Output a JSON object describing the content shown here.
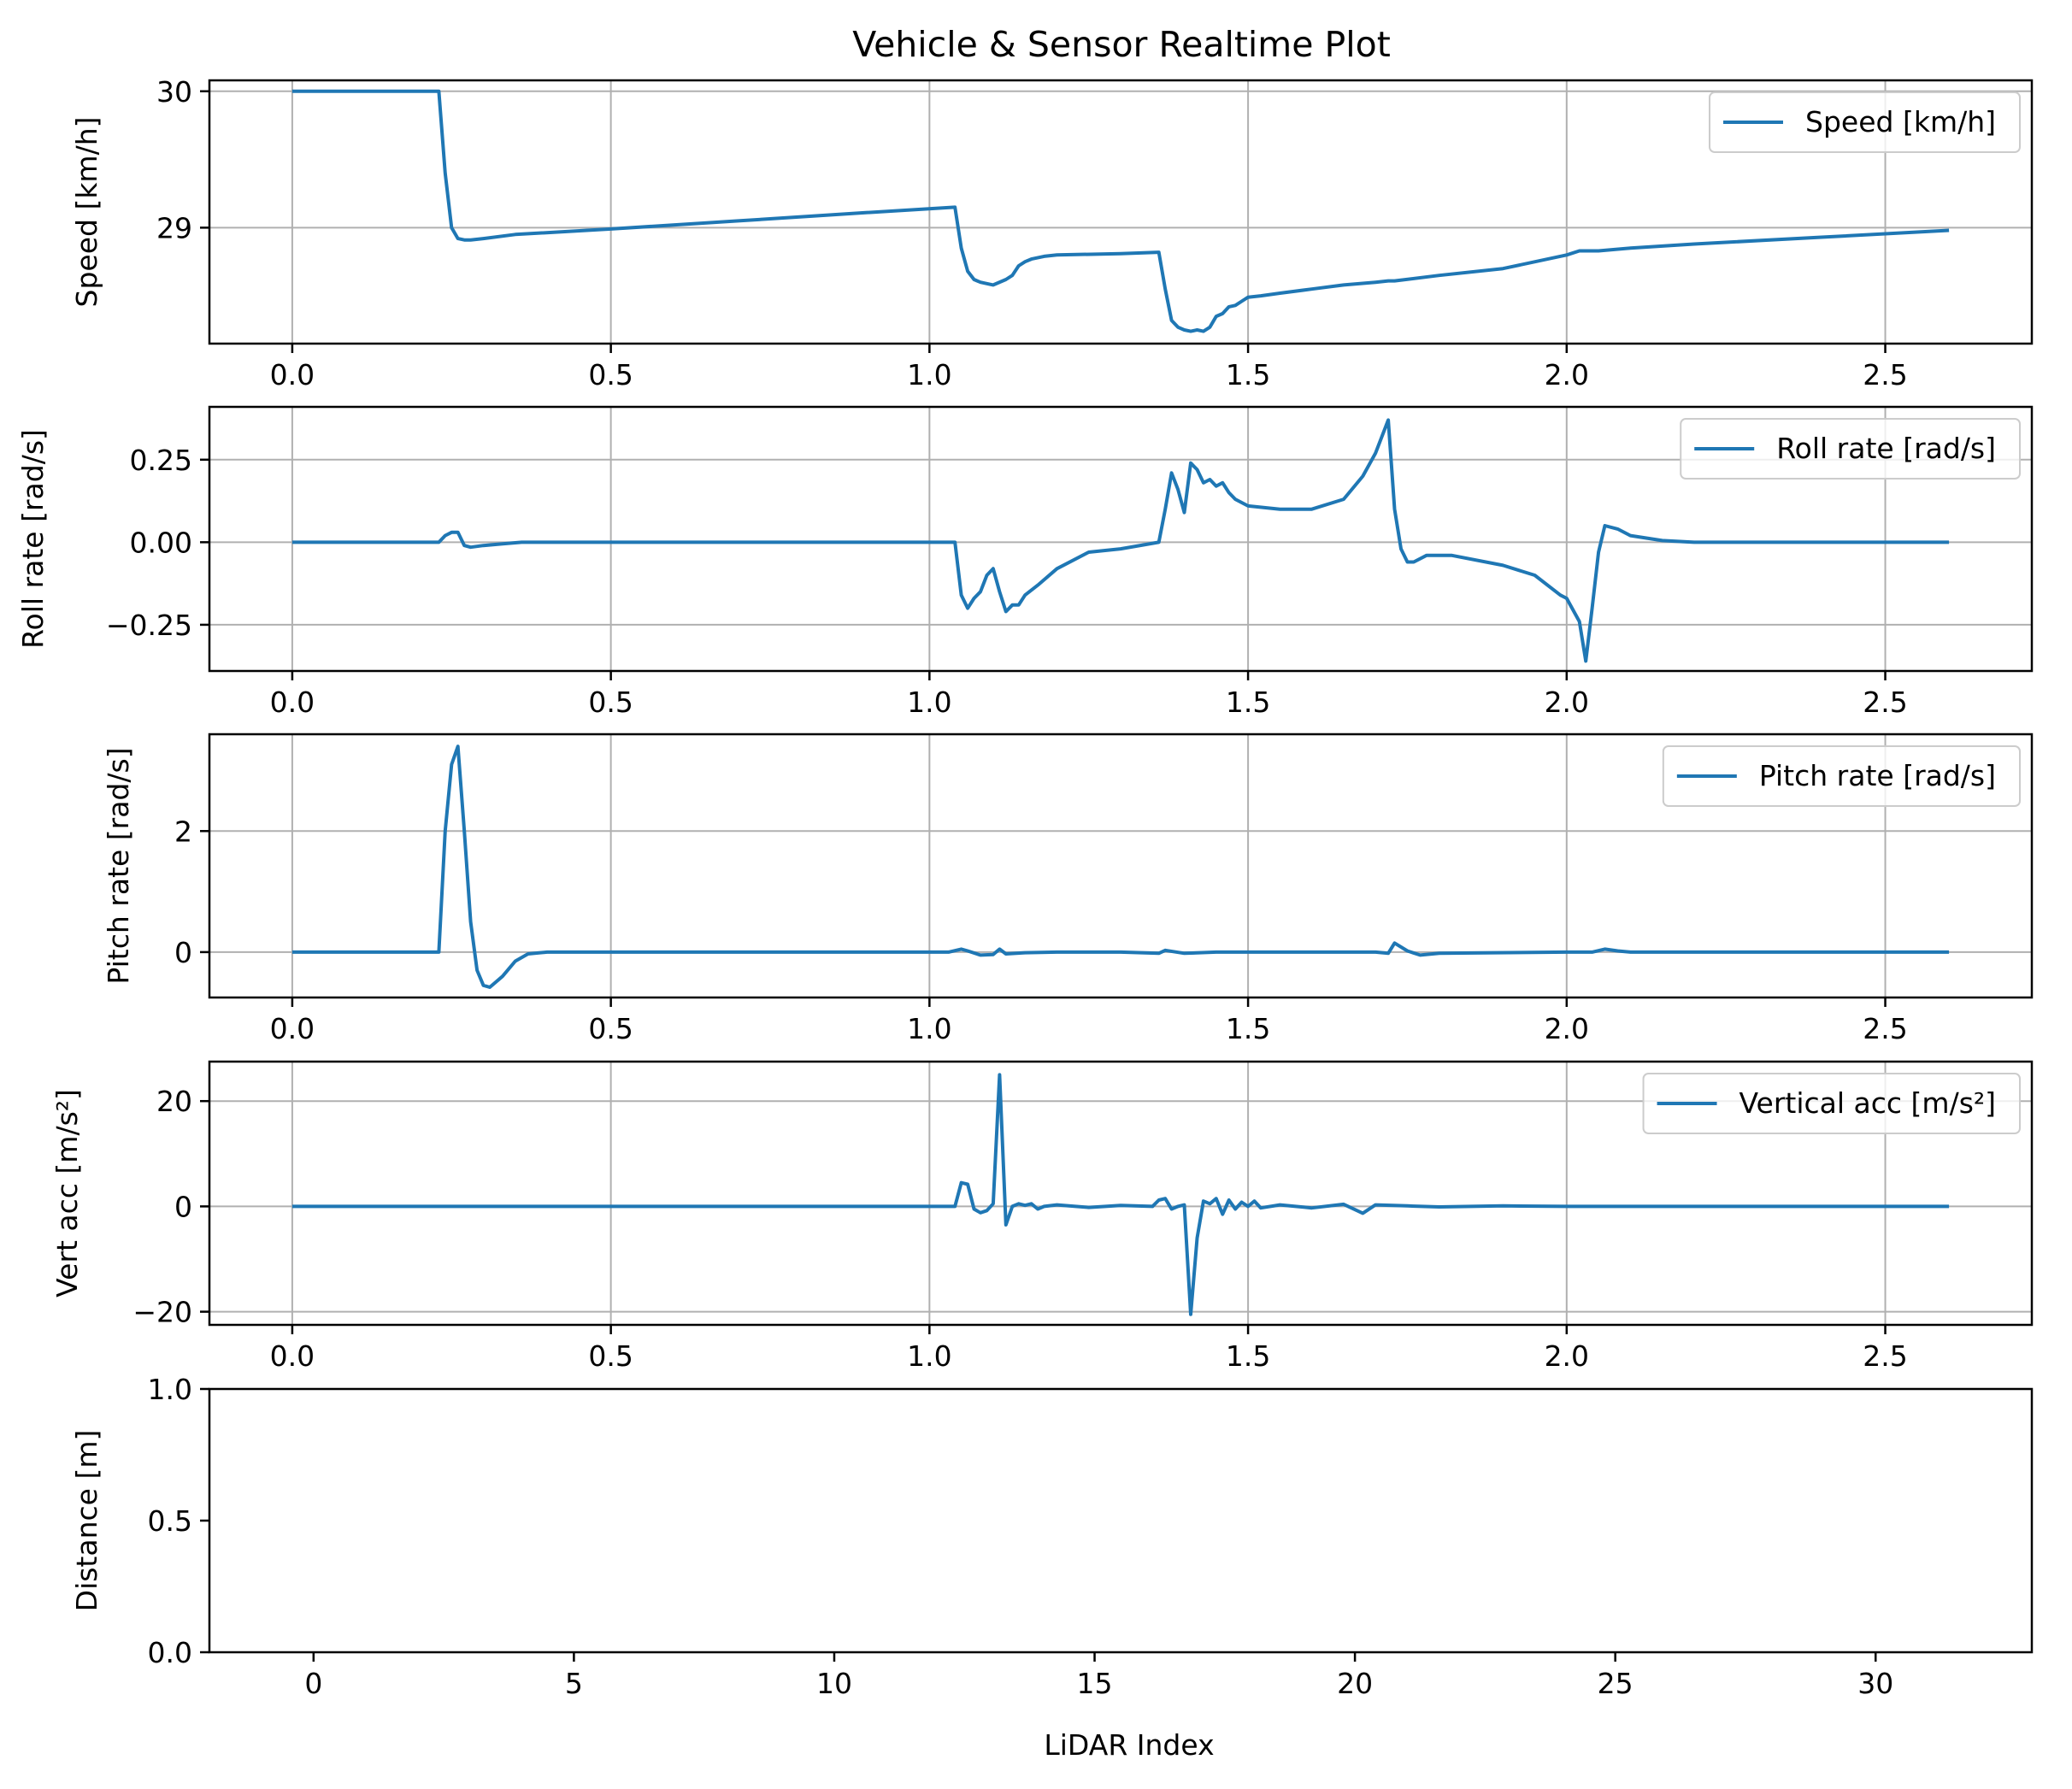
{
  "figure": {
    "title": "Vehicle & Sensor Realtime Plot",
    "line_color": "#1f77b4",
    "grid_color": "#b0b0b0"
  },
  "chart_data": [
    {
      "type": "line",
      "ylabel": "Speed [km/h]",
      "xlim": [
        -0.13,
        2.73
      ],
      "ylim": [
        28.15,
        30.08
      ],
      "xticks": [
        "0.0",
        "0.5",
        "1.0",
        "1.5",
        "2.0",
        "2.5"
      ],
      "yticks": [
        "29",
        "30"
      ],
      "grid": true,
      "legend": "top-right",
      "series": [
        {
          "name": "Speed [km/h]",
          "x": [
            0,
            0.23,
            0.24,
            0.25,
            0.26,
            0.27,
            0.28,
            0.3,
            0.35,
            0.5,
            0.7,
            0.9,
            1.04,
            1.05,
            1.06,
            1.07,
            1.08,
            1.1,
            1.12,
            1.13,
            1.14,
            1.15,
            1.16,
            1.18,
            1.2,
            1.3,
            1.36,
            1.37,
            1.38,
            1.39,
            1.4,
            1.41,
            1.42,
            1.43,
            1.44,
            1.45,
            1.46,
            1.47,
            1.48,
            1.49,
            1.5,
            1.52,
            1.55,
            1.6,
            1.65,
            1.7,
            1.72,
            1.73,
            1.8,
            1.9,
            2.0,
            2.02,
            2.05,
            2.1,
            2.2,
            2.4,
            2.6
          ],
          "values": [
            30.0,
            30.0,
            29.4,
            29.0,
            28.92,
            28.91,
            28.91,
            28.92,
            28.95,
            28.99,
            29.05,
            29.11,
            29.15,
            28.85,
            28.68,
            28.62,
            28.6,
            28.58,
            28.62,
            28.65,
            28.72,
            28.75,
            28.77,
            28.79,
            28.8,
            28.81,
            28.82,
            28.55,
            28.32,
            28.27,
            28.25,
            28.24,
            28.25,
            28.24,
            28.27,
            28.35,
            28.37,
            28.42,
            28.43,
            28.46,
            28.49,
            28.5,
            28.52,
            28.55,
            28.58,
            28.6,
            28.61,
            28.61,
            28.65,
            28.7,
            28.8,
            28.83,
            28.83,
            28.85,
            28.88,
            28.93,
            28.98
          ]
        }
      ]
    },
    {
      "type": "line",
      "ylabel": "Roll rate [rad/s]",
      "xlim": [
        -0.13,
        2.73
      ],
      "ylim": [
        -0.39,
        0.41
      ],
      "xticks": [
        "0.0",
        "0.5",
        "1.0",
        "1.5",
        "2.0",
        "2.5"
      ],
      "yticks": [
        "−0.25",
        "0.00",
        "0.25"
      ],
      "grid": true,
      "legend": "top-right",
      "series": [
        {
          "name": "Roll rate [rad/s]",
          "x": [
            0,
            0.23,
            0.24,
            0.25,
            0.26,
            0.27,
            0.28,
            0.3,
            0.33,
            0.36,
            0.5,
            1.04,
            1.05,
            1.06,
            1.07,
            1.08,
            1.09,
            1.1,
            1.11,
            1.12,
            1.13,
            1.14,
            1.15,
            1.17,
            1.2,
            1.25,
            1.3,
            1.36,
            1.37,
            1.38,
            1.39,
            1.4,
            1.41,
            1.42,
            1.43,
            1.44,
            1.45,
            1.46,
            1.47,
            1.48,
            1.5,
            1.55,
            1.6,
            1.65,
            1.68,
            1.7,
            1.72,
            1.73,
            1.74,
            1.75,
            1.76,
            1.78,
            1.82,
            1.9,
            1.95,
            1.99,
            2.0,
            2.02,
            2.03,
            2.04,
            2.05,
            2.06,
            2.08,
            2.1,
            2.15,
            2.2,
            2.6
          ],
          "values": [
            0,
            0,
            0.02,
            0.03,
            0.03,
            -0.01,
            -0.015,
            -0.01,
            -0.005,
            0,
            0,
            0,
            -0.16,
            -0.2,
            -0.17,
            -0.15,
            -0.1,
            -0.08,
            -0.15,
            -0.21,
            -0.19,
            -0.19,
            -0.16,
            -0.13,
            -0.08,
            -0.03,
            -0.02,
            0,
            0.1,
            0.21,
            0.16,
            0.09,
            0.24,
            0.22,
            0.18,
            0.19,
            0.17,
            0.18,
            0.15,
            0.13,
            0.11,
            0.1,
            0.1,
            0.13,
            0.2,
            0.27,
            0.37,
            0.1,
            -0.02,
            -0.06,
            -0.06,
            -0.04,
            -0.04,
            -0.07,
            -0.1,
            -0.16,
            -0.17,
            -0.24,
            -0.36,
            -0.2,
            -0.03,
            0.05,
            0.04,
            0.02,
            0.005,
            0,
            0
          ]
        }
      ]
    },
    {
      "type": "line",
      "ylabel": "Pitch rate [rad/s]",
      "xlim": [
        -0.13,
        2.73
      ],
      "ylim": [
        -0.75,
        3.6
      ],
      "xticks": [
        "0.0",
        "0.5",
        "1.0",
        "1.5",
        "2.0",
        "2.5"
      ],
      "yticks": [
        "0",
        "2"
      ],
      "grid": true,
      "legend": "top-right",
      "series": [
        {
          "name": "Pitch rate [rad/s]",
          "x": [
            0,
            0.23,
            0.24,
            0.25,
            0.26,
            0.27,
            0.28,
            0.29,
            0.3,
            0.31,
            0.33,
            0.35,
            0.37,
            0.4,
            0.45,
            1.03,
            1.05,
            1.06,
            1.08,
            1.1,
            1.11,
            1.12,
            1.15,
            1.2,
            1.3,
            1.36,
            1.37,
            1.4,
            1.45,
            1.5,
            1.7,
            1.72,
            1.73,
            1.75,
            1.77,
            1.8,
            2.0,
            2.04,
            2.06,
            2.08,
            2.1,
            2.6
          ],
          "values": [
            0,
            0,
            2.0,
            3.1,
            3.4,
            2.0,
            0.5,
            -0.3,
            -0.55,
            -0.58,
            -0.4,
            -0.15,
            -0.03,
            0,
            0,
            0,
            0.05,
            0.02,
            -0.05,
            -0.04,
            0.05,
            -0.03,
            -0.01,
            0,
            0,
            -0.02,
            0.03,
            -0.02,
            0,
            0,
            0,
            -0.02,
            0.15,
            0.02,
            -0.05,
            -0.02,
            0,
            0,
            0.05,
            0.02,
            0,
            0
          ]
        }
      ]
    },
    {
      "type": "line",
      "ylabel": "Vert acc [m/s²]",
      "xlim": [
        -0.13,
        2.73
      ],
      "ylim": [
        -22.5,
        27.5
      ],
      "xticks": [
        "0.0",
        "0.5",
        "1.0",
        "1.5",
        "2.0",
        "2.5"
      ],
      "yticks": [
        "−20",
        "0",
        "20"
      ],
      "grid": true,
      "legend": "top-right",
      "series": [
        {
          "name": "Vertical acc [m/s²]",
          "x": [
            0,
            1.04,
            1.05,
            1.06,
            1.07,
            1.08,
            1.09,
            1.1,
            1.11,
            1.12,
            1.13,
            1.14,
            1.15,
            1.16,
            1.17,
            1.18,
            1.2,
            1.25,
            1.3,
            1.35,
            1.36,
            1.37,
            1.38,
            1.39,
            1.4,
            1.41,
            1.42,
            1.43,
            1.44,
            1.45,
            1.46,
            1.47,
            1.48,
            1.49,
            1.5,
            1.51,
            1.52,
            1.55,
            1.6,
            1.65,
            1.68,
            1.7,
            1.75,
            1.8,
            1.9,
            2.0,
            2.6
          ],
          "values": [
            0,
            0,
            4.5,
            4.2,
            -0.5,
            -1.2,
            -0.8,
            0.5,
            25,
            -3.5,
            0,
            0.5,
            0.2,
            0.5,
            -0.5,
            0,
            0.3,
            -0.2,
            0.2,
            0,
            1.2,
            1.5,
            -0.5,
            0,
            0.3,
            -20.5,
            -6,
            1,
            0.5,
            1.5,
            -1.5,
            1.2,
            -0.5,
            0.8,
            0,
            1,
            -0.3,
            0.3,
            -0.3,
            0.4,
            -1.3,
            0.3,
            0.1,
            -0.1,
            0.1,
            0,
            0
          ]
        }
      ]
    },
    {
      "type": "line",
      "ylabel": "Distance [m]",
      "xlabel": "LiDAR Index",
      "xlim": [
        -2.0,
        33.0
      ],
      "ylim": [
        0.0,
        1.0
      ],
      "xticks": [
        "0",
        "5",
        "10",
        "15",
        "20",
        "25",
        "30"
      ],
      "yticks": [
        "0.0",
        "0.5",
        "1.0"
      ],
      "grid": false,
      "series": []
    }
  ]
}
